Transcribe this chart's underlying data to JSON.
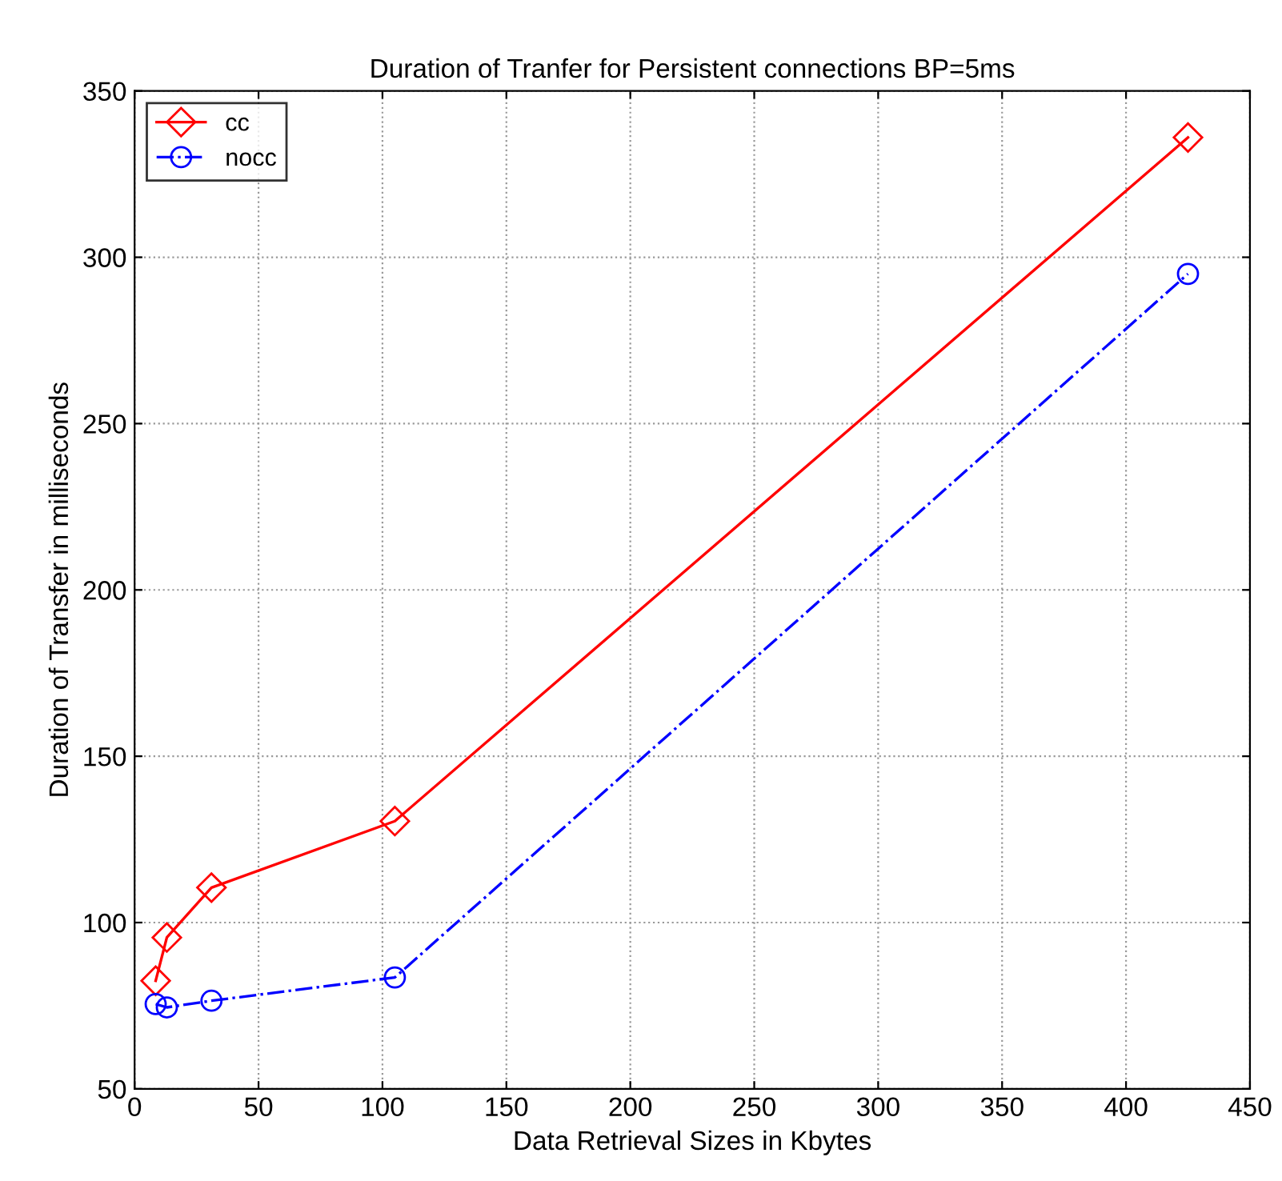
{
  "chart_data": {
    "type": "line",
    "title": "Duration of Tranfer for Persistent connections BP=5ms",
    "xlabel": "Data Retrieval Sizes in Kbytes",
    "ylabel": "Duration of Transfer in milliseconds",
    "x": [
      8.5,
      13,
      31,
      105,
      425
    ],
    "series": [
      {
        "name": "cc",
        "color": "#ff0000",
        "values": [
          82.5,
          95.5,
          110.5,
          130.5,
          336
        ],
        "marker": "diamond",
        "line_style": "solid"
      },
      {
        "name": "nocc",
        "color": "#0000ff",
        "values": [
          75.5,
          74.5,
          76.5,
          83.5,
          295
        ],
        "marker": "circle",
        "line_style": "dashdot"
      }
    ],
    "xlim": [
      0,
      450
    ],
    "xticks": [
      0,
      50,
      100,
      150,
      200,
      250,
      300,
      350,
      400,
      450
    ],
    "ylim": [
      50,
      350
    ],
    "yticks": [
      50,
      100,
      150,
      200,
      250,
      300,
      350
    ],
    "grid": true,
    "legend": "top left"
  }
}
